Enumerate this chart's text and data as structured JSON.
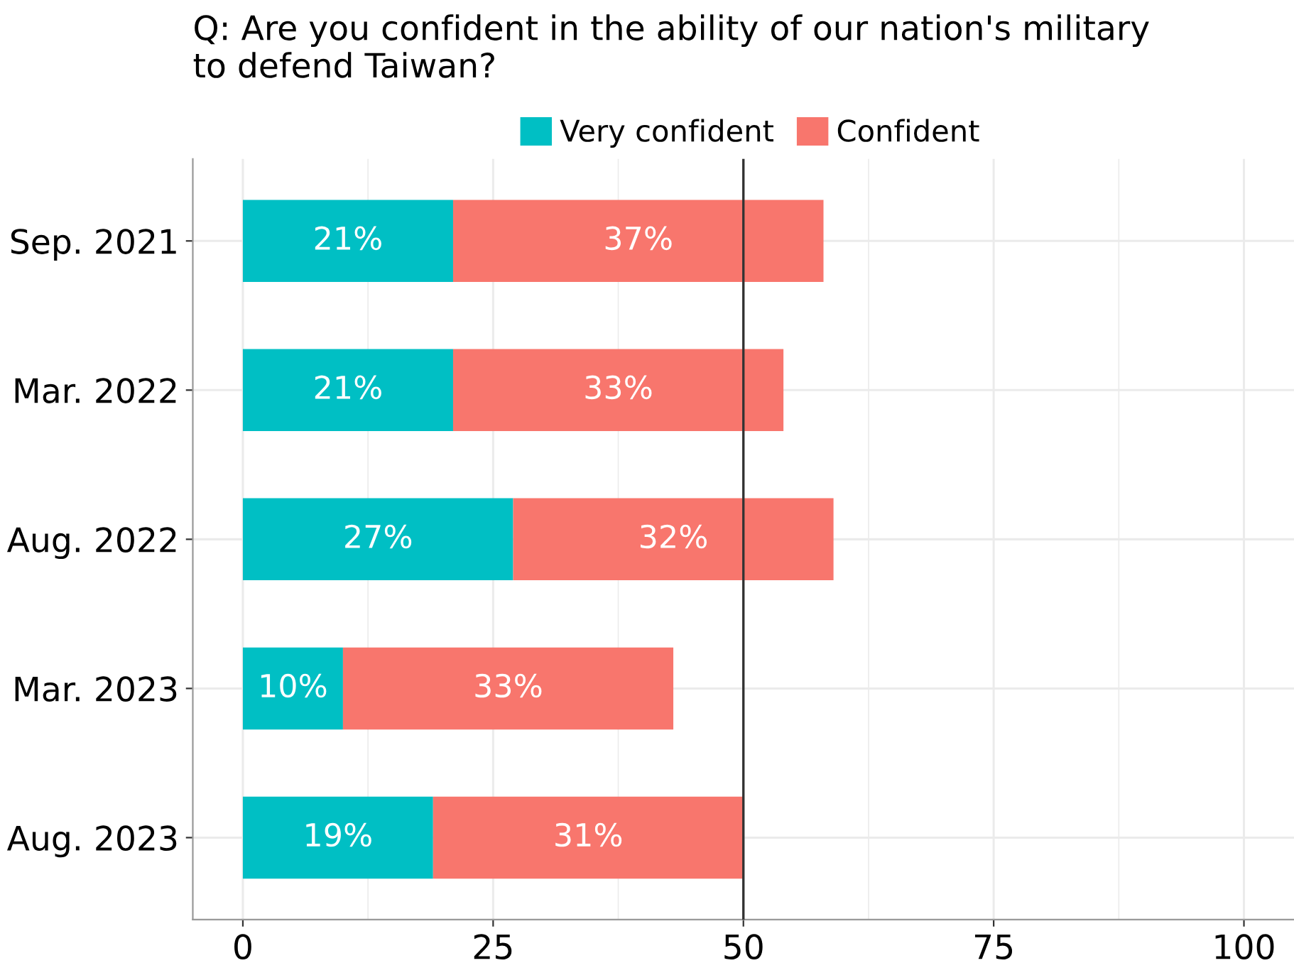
{
  "chart_data": {
    "type": "bar",
    "orientation": "horizontal",
    "stacked": true,
    "title": "Q: Are you confident in the ability of our nation's military\nto defend Taiwan?",
    "categories": [
      "Sep. 2021",
      "Mar. 2022",
      "Aug. 2022",
      "Mar. 2023",
      "Aug. 2023"
    ],
    "series": [
      {
        "name": "Very confident",
        "color": "#00bfc4",
        "values": [
          21,
          21,
          27,
          10,
          19
        ],
        "value_labels": [
          "21%",
          "21%",
          "27%",
          "10%",
          "19%"
        ]
      },
      {
        "name": "Confident",
        "color": "#f8766d",
        "values": [
          37,
          33,
          32,
          33,
          31
        ],
        "value_labels": [
          "37%",
          "33%",
          "32%",
          "33%",
          "31%"
        ]
      }
    ],
    "xlim": [
      -5,
      105
    ],
    "xticks": [
      0,
      25,
      50,
      75,
      100
    ],
    "grid": true,
    "legend": "top",
    "ref_lines": [
      {
        "axis": "x",
        "value": 50,
        "color": "#333333"
      }
    ]
  }
}
